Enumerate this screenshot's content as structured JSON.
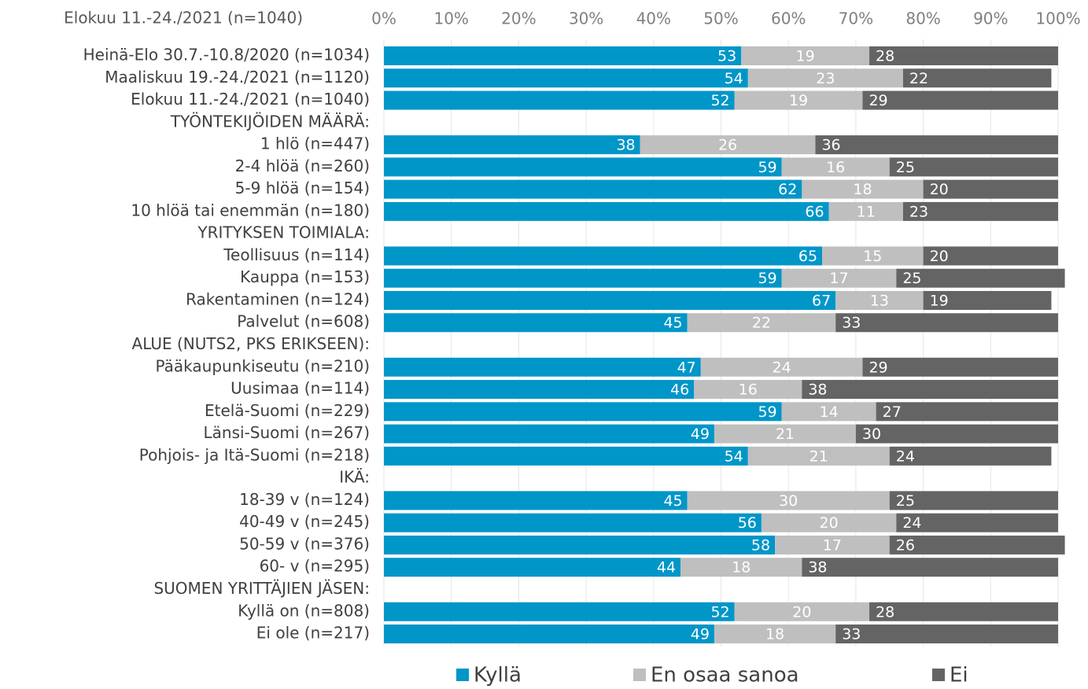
{
  "chart_data": {
    "type": "stacked_bar_horizontal",
    "title": "Elokuu 11.-24./2021 (n=1040)",
    "categories": [
      "Heinä-Elo 30.7.-10.8/2020 (n=1034)",
      "Maaliskuu 19.-24./2021 (n=1120)",
      "Elokuu 11.-24./2021 (n=1040)",
      "TYÖNTEKIJÖIDEN MÄÄRÄ:",
      "1 hlö (n=447)",
      "2-4 hlöä (n=260)",
      "5-9 hlöä (n=154)",
      "10 hlöä tai enemmän (n=180)",
      "YRITYKSEN TOIMIALA:",
      "Teollisuus (n=114)",
      "Kauppa (n=153)",
      "Rakentaminen (n=124)",
      "Palvelut (n=608)",
      "ALUE (NUTS2, PKS ERIKSEEN):",
      "Pääkaupunkiseutu (n=210)",
      "Uusimaa (n=114)",
      "Etelä-Suomi (n=229)",
      "Länsi-Suomi (n=267)",
      "Pohjois- ja Itä-Suomi (n=218)",
      "IKÄ:",
      "18-39 v (n=124)",
      "40-49 v (n=245)",
      "50-59 v (n=376)",
      "60- v (n=295)",
      "SUOMEN YRITTÄJIEN JÄSEN:",
      "Kyllä on (n=808)",
      "Ei ole (n=217)"
    ],
    "series": [
      {
        "name": "Kyllä",
        "color": "#0096c8",
        "values": [
          53,
          54,
          52,
          null,
          38,
          59,
          62,
          66,
          null,
          65,
          59,
          67,
          45,
          null,
          47,
          46,
          59,
          49,
          54,
          null,
          45,
          56,
          58,
          44,
          null,
          52,
          49
        ]
      },
      {
        "name": "En osaa sanoa",
        "color": "#bfbfbf",
        "values": [
          19,
          23,
          19,
          null,
          26,
          16,
          18,
          11,
          null,
          15,
          17,
          13,
          22,
          null,
          24,
          16,
          14,
          21,
          21,
          null,
          30,
          20,
          17,
          18,
          null,
          20,
          18
        ]
      },
      {
        "name": "Ei",
        "color": "#646464",
        "values": [
          28,
          22,
          29,
          null,
          36,
          25,
          20,
          23,
          null,
          20,
          25,
          19,
          33,
          null,
          29,
          38,
          27,
          30,
          24,
          null,
          25,
          24,
          26,
          38,
          null,
          28,
          33
        ]
      }
    ],
    "xlim": [
      0,
      100
    ],
    "xticks": [
      {
        "value": 0,
        "label": "0%"
      },
      {
        "value": 10,
        "label": "10%"
      },
      {
        "value": 20,
        "label": "20%"
      },
      {
        "value": 30,
        "label": "30%"
      },
      {
        "value": 40,
        "label": "40%"
      },
      {
        "value": 50,
        "label": "50%"
      },
      {
        "value": 60,
        "label": "60%"
      },
      {
        "value": 70,
        "label": "70%"
      },
      {
        "value": 80,
        "label": "80%"
      },
      {
        "value": 90,
        "label": "90%"
      },
      {
        "value": 100,
        "label": "100%"
      }
    ],
    "grid": true,
    "legend": "bottom"
  }
}
